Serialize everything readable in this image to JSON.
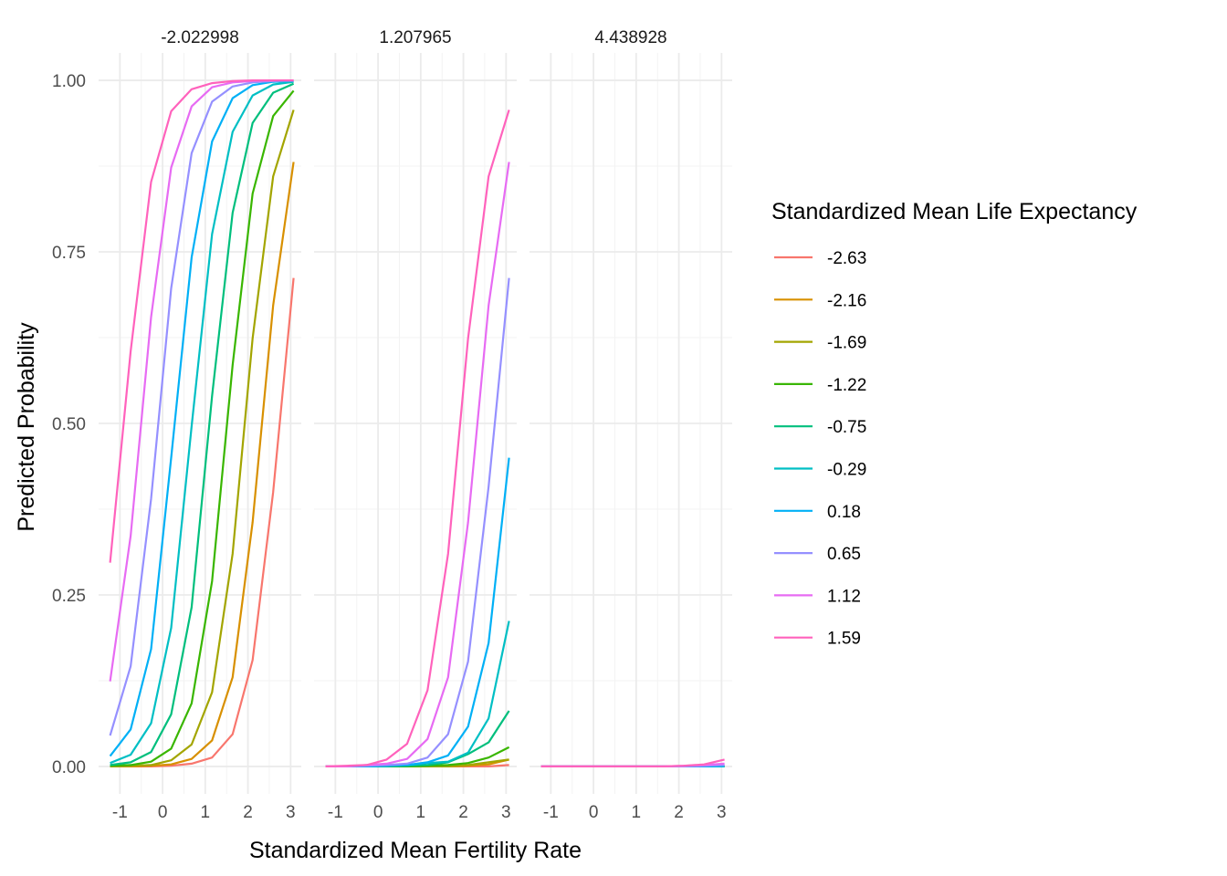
{
  "chart_data": {
    "type": "line",
    "xlabel": "Standardized Mean Fertility Rate",
    "ylabel": "Predicted Probability",
    "xlim": [
      -1.5,
      3.25
    ],
    "ylim": [
      -0.04,
      1.04
    ],
    "x_ticks": [
      -1,
      0,
      1,
      2,
      3
    ],
    "x_tick_labels": [
      "-1",
      "0",
      "1",
      "2",
      "3"
    ],
    "y_ticks": [
      0,
      0.25,
      0.5,
      0.75,
      1
    ],
    "y_tick_labels": [
      "0.00",
      "0.25",
      "0.50",
      "0.75",
      "1.00"
    ],
    "grid": true,
    "legend": {
      "title": "Standardized Mean Life Expectancy",
      "position": "right"
    },
    "x": [
      -1.23,
      -0.75,
      -0.27,
      0.2,
      0.68,
      1.16,
      1.64,
      2.11,
      2.59,
      3.07
    ],
    "colors": [
      "#F8766D",
      "#D89000",
      "#A3A500",
      "#39B600",
      "#00BF7D",
      "#00BFC4",
      "#00B0F6",
      "#9590FF",
      "#E76BF3",
      "#FF62BC"
    ],
    "panels": [
      {
        "strip": "-2.022998",
        "series": [
          {
            "name": "-2.63",
            "values": [
              0.0,
              0.0,
              0.0,
              0.001,
              0.004,
              0.013,
              0.047,
              0.155,
              0.4,
              0.712
            ]
          },
          {
            "name": "-2.16",
            "values": [
              0.0,
              0.0,
              0.001,
              0.003,
              0.011,
              0.038,
              0.13,
              0.356,
              0.672,
              0.881
            ]
          },
          {
            "name": "-1.69",
            "values": [
              0.0,
              0.001,
              0.002,
              0.009,
              0.032,
              0.108,
              0.31,
              0.624,
              0.86,
              0.957
            ]
          },
          {
            "name": "-1.22",
            "values": [
              0.001,
              0.002,
              0.007,
              0.026,
              0.092,
              0.27,
              0.585,
              0.835,
              0.948,
              0.985
            ]
          },
          {
            "name": "-0.75",
            "values": [
              0.002,
              0.006,
              0.021,
              0.076,
              0.232,
              0.54,
              0.807,
              0.938,
              0.982,
              0.995
            ]
          },
          {
            "name": "-0.29",
            "values": [
              0.005,
              0.017,
              0.063,
              0.202,
              0.496,
              0.776,
              0.925,
              0.978,
              0.994,
              0.998
            ]
          },
          {
            "name": "0.18",
            "values": [
              0.015,
              0.054,
              0.171,
              0.45,
              0.742,
              0.911,
              0.974,
              0.993,
              0.998,
              0.999
            ]
          },
          {
            "name": "0.65",
            "values": [
              0.045,
              0.146,
              0.39,
              0.697,
              0.894,
              0.969,
              0.991,
              0.997,
              0.999,
              1.0
            ]
          },
          {
            "name": "1.12",
            "values": [
              0.124,
              0.336,
              0.655,
              0.873,
              0.962,
              0.99,
              0.997,
              0.999,
              1.0,
              1.0
            ]
          },
          {
            "name": "1.59",
            "values": [
              0.297,
              0.605,
              0.852,
              0.955,
              0.987,
              0.996,
              0.999,
              1.0,
              1.0,
              1.0
            ]
          }
        ]
      },
      {
        "strip": "1.207965",
        "series": [
          {
            "name": "-2.63",
            "values": [
              0.0,
              0.0,
              0.0,
              0.0,
              0.0,
              0.0,
              0.0,
              0.0,
              0.0,
              0.002
            ]
          },
          {
            "name": "-2.16",
            "values": [
              0.0,
              0.0,
              0.0,
              0.0,
              0.0,
              0.0,
              0.0,
              0.001,
              0.003,
              0.01
            ]
          },
          {
            "name": "-1.69",
            "values": [
              0.0,
              0.0,
              0.0,
              0.0,
              0.0,
              0.0,
              0.0,
              0.002,
              0.006,
              0.01
            ]
          },
          {
            "name": "-1.22",
            "values": [
              0.0,
              0.0,
              0.0,
              0.0,
              0.0,
              0.001,
              0.002,
              0.005,
              0.013,
              0.028
            ]
          },
          {
            "name": "-0.75",
            "values": [
              0.0,
              0.0,
              0.0,
              0.0,
              0.001,
              0.002,
              0.006,
              0.018,
              0.035,
              0.081
            ]
          },
          {
            "name": "-0.29",
            "values": [
              0.0,
              0.0,
              0.0,
              0.001,
              0.002,
              0.005,
              0.007,
              0.02,
              0.07,
              0.212
            ]
          },
          {
            "name": "0.18",
            "values": [
              0.0,
              0.0,
              0.0,
              0.001,
              0.002,
              0.006,
              0.016,
              0.058,
              0.18,
              0.45
            ]
          },
          {
            "name": "0.65",
            "values": [
              0.0,
              0.0,
              0.001,
              0.002,
              0.004,
              0.013,
              0.047,
              0.153,
              0.408,
              0.712
            ]
          },
          {
            "name": "1.12",
            "values": [
              0.0,
              0.0,
              0.002,
              0.004,
              0.011,
              0.04,
              0.13,
              0.356,
              0.672,
              0.881
            ]
          },
          {
            "name": "1.59",
            "values": [
              0.0,
              0.001,
              0.002,
              0.01,
              0.033,
              0.111,
              0.31,
              0.624,
              0.86,
              0.957
            ]
          }
        ]
      },
      {
        "strip": "4.438928",
        "series": [
          {
            "name": "-2.63",
            "values": [
              0,
              0,
              0,
              0,
              0,
              0,
              0,
              0,
              0,
              0
            ]
          },
          {
            "name": "-2.16",
            "values": [
              0,
              0,
              0,
              0,
              0,
              0,
              0,
              0,
              0,
              0
            ]
          },
          {
            "name": "-1.69",
            "values": [
              0,
              0,
              0,
              0,
              0,
              0,
              0,
              0,
              0,
              0
            ]
          },
          {
            "name": "-1.22",
            "values": [
              0,
              0,
              0,
              0,
              0,
              0,
              0,
              0,
              0,
              0
            ]
          },
          {
            "name": "-0.75",
            "values": [
              0,
              0,
              0,
              0,
              0,
              0,
              0,
              0,
              0,
              0
            ]
          },
          {
            "name": "-0.29",
            "values": [
              0,
              0,
              0,
              0,
              0,
              0,
              0,
              0,
              0,
              0
            ]
          },
          {
            "name": "0.18",
            "values": [
              0,
              0,
              0,
              0,
              0,
              0,
              0,
              0,
              0,
              0.001
            ]
          },
          {
            "name": "0.65",
            "values": [
              0,
              0,
              0,
              0,
              0,
              0,
              0,
              0,
              0.001,
              0.002
            ]
          },
          {
            "name": "1.12",
            "values": [
              0,
              0,
              0,
              0,
              0,
              0,
              0,
              0.001,
              0.002,
              0.004
            ]
          },
          {
            "name": "1.59",
            "values": [
              0,
              0,
              0,
              0,
              0,
              0,
              0,
              0.001,
              0.003,
              0.01
            ]
          }
        ]
      }
    ]
  }
}
